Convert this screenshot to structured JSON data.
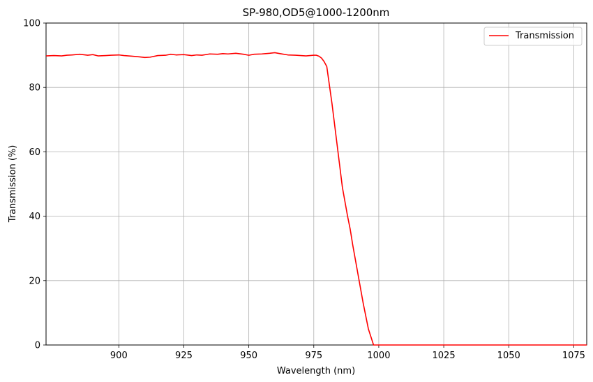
{
  "chart_data": {
    "type": "line",
    "title": "SP-980,OD5@1000-1200nm",
    "xlabel": "Wavelength (nm)",
    "ylabel": "Transmission (%)",
    "xlim": [
      872,
      1080
    ],
    "ylim": [
      0,
      100
    ],
    "xticks": [
      900,
      925,
      950,
      975,
      1000,
      1025,
      1050,
      1075
    ],
    "yticks": [
      0,
      20,
      40,
      60,
      80,
      100
    ],
    "grid": true,
    "legend_position": "top-right",
    "series": [
      {
        "name": "Transmission",
        "color": "#ff0000",
        "x": [
          872,
          875,
          878,
          880,
          882,
          885,
          888,
          890,
          892,
          895,
          897,
          900,
          902,
          905,
          908,
          910,
          912,
          915,
          918,
          920,
          922,
          925,
          928,
          930,
          932,
          935,
          938,
          940,
          942,
          945,
          948,
          950,
          952,
          955,
          958,
          960,
          962,
          965,
          968,
          970,
          972,
          975,
          976,
          977,
          978,
          979,
          980,
          982,
          984,
          986,
          988,
          989,
          990,
          992,
          994,
          996,
          998,
          999,
          1000,
          1010,
          1020,
          1030,
          1040,
          1050,
          1060,
          1070,
          1080
        ],
        "y": [
          89.8,
          89.9,
          89.8,
          90.0,
          90.1,
          90.3,
          90.0,
          90.2,
          89.8,
          89.9,
          90.0,
          90.1,
          89.9,
          89.7,
          89.5,
          89.3,
          89.4,
          89.9,
          90.0,
          90.3,
          90.1,
          90.2,
          89.9,
          90.1,
          90.0,
          90.4,
          90.3,
          90.5,
          90.4,
          90.6,
          90.3,
          90.0,
          90.3,
          90.4,
          90.6,
          90.8,
          90.5,
          90.1,
          90.0,
          89.9,
          89.8,
          90.0,
          90.0,
          89.7,
          89.1,
          88.0,
          86.5,
          75.0,
          62.0,
          49.0,
          40.0,
          36.0,
          31.0,
          22.0,
          13.0,
          5.0,
          0.0,
          0.0,
          0.0,
          0.0,
          0.0,
          0.0,
          0.0,
          0.0,
          0.0,
          0.0,
          0.0
        ]
      }
    ]
  }
}
